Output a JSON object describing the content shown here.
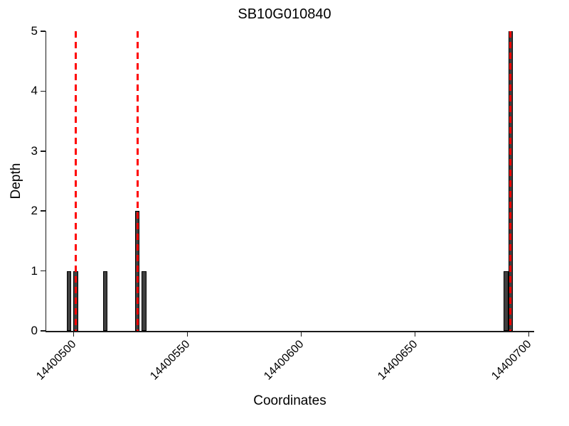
{
  "title": "SB10G010840",
  "chart_data": {
    "type": "bar",
    "title": "SB10G010840",
    "xlabel": "Coordinates",
    "ylabel": "Depth",
    "xlim": [
      14400488,
      14400702
    ],
    "ylim": [
      0,
      5
    ],
    "x_ticks": [
      14400500,
      14400550,
      14400600,
      14400650,
      14400700
    ],
    "y_ticks": [
      0,
      1,
      2,
      3,
      4,
      5
    ],
    "x_tick_rotation_deg": 45,
    "bar_width_units": 2,
    "bars": [
      {
        "x": 14400498,
        "depth": 1
      },
      {
        "x": 14400501,
        "depth": 1
      },
      {
        "x": 14400514,
        "depth": 1
      },
      {
        "x": 14400528,
        "depth": 2
      },
      {
        "x": 14400531,
        "depth": 1
      },
      {
        "x": 14400690,
        "depth": 1
      },
      {
        "x": 14400692,
        "depth": 5
      }
    ],
    "marker_lines": [
      14400501,
      14400528,
      14400692
    ],
    "grid": false,
    "legend": null,
    "colors": {
      "bar_fill": "#3f3f3f",
      "bar_edge": "#000000",
      "marker_line": "#ff0000",
      "axis": "#1a1a1a",
      "text": "#000000",
      "background": "#ffffff"
    }
  }
}
